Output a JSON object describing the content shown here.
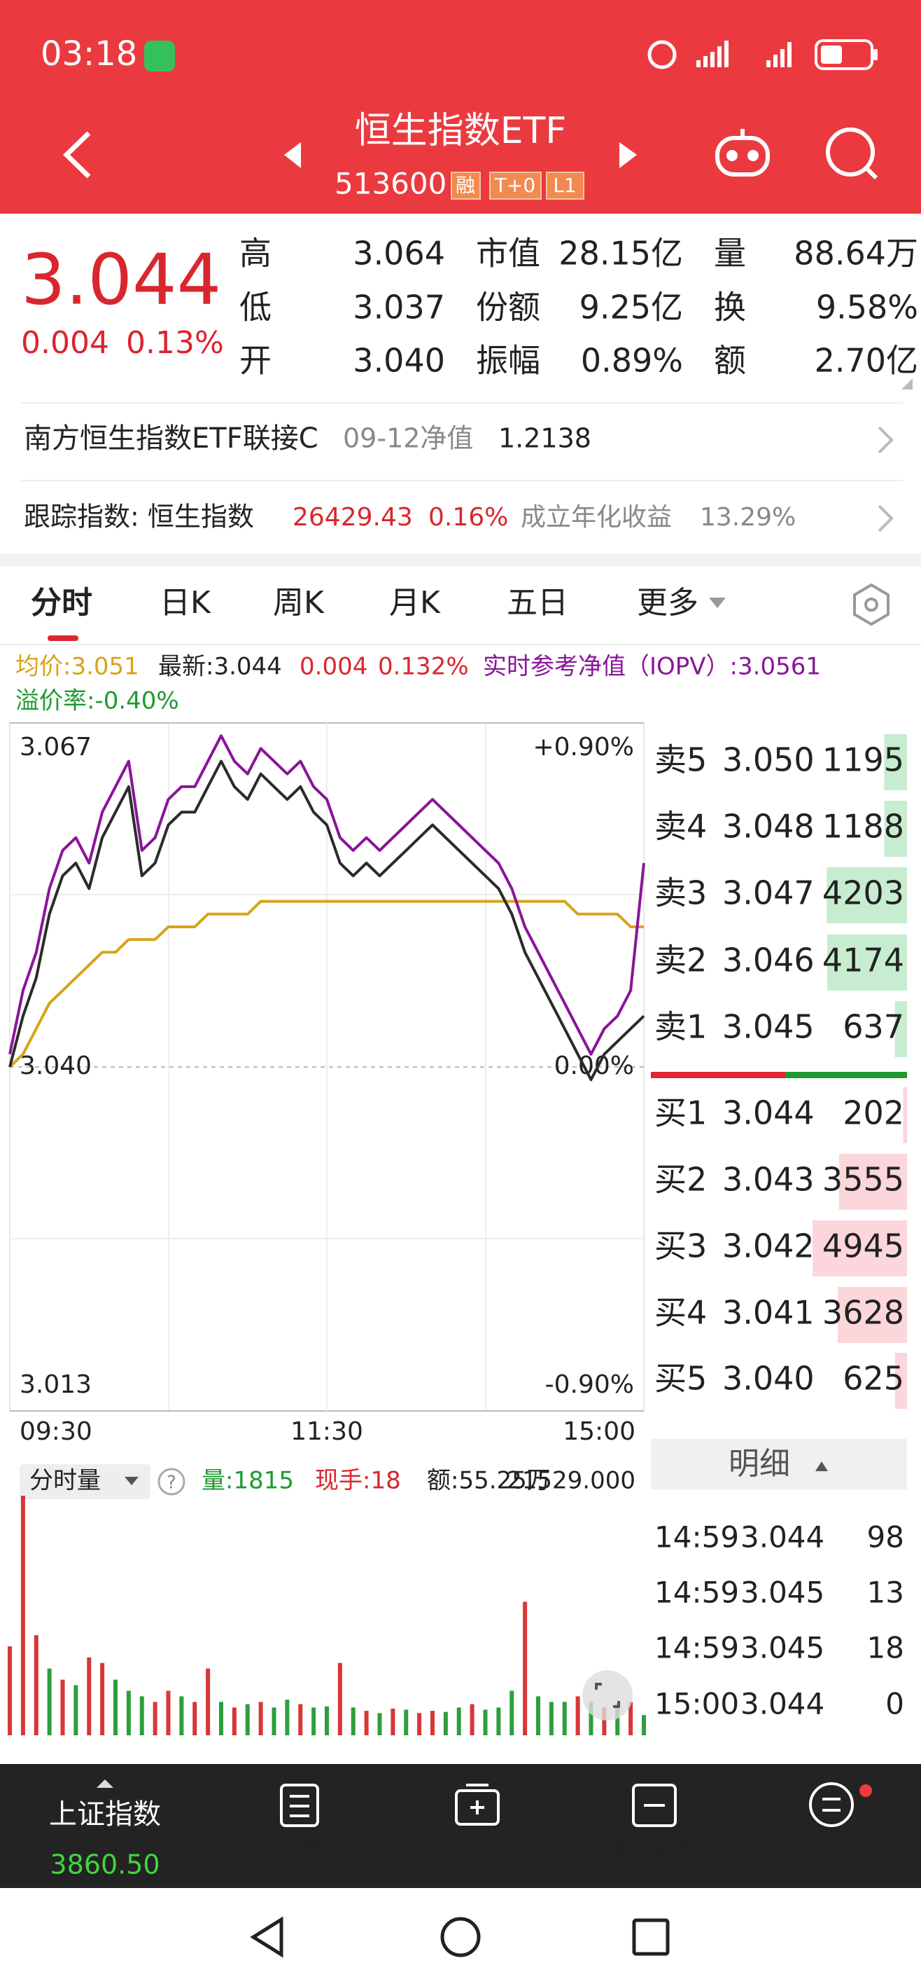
{
  "status_bar": {
    "time": "03:18"
  },
  "header": {
    "title": "恒生指数ETF",
    "code": "513600",
    "tags": [
      "融",
      "T+0",
      "L1"
    ]
  },
  "quote": {
    "price": "3.044",
    "change": "0.004",
    "change_pct": "0.13%",
    "rows": [
      [
        {
          "label": "高",
          "value": "3.064"
        },
        {
          "label": "市值",
          "value": "28.15亿"
        },
        {
          "label": "量",
          "value": "88.64万"
        }
      ],
      [
        {
          "label": "低",
          "value": "3.037"
        },
        {
          "label": "份额",
          "value": "9.25亿"
        },
        {
          "label": "换",
          "value": "9.58%"
        }
      ],
      [
        {
          "label": "开",
          "value": "3.040"
        },
        {
          "label": "振幅",
          "value": "0.89%"
        },
        {
          "label": "额",
          "value": "2.70亿"
        }
      ]
    ]
  },
  "fund_row": {
    "name": "南方恒生指数ETF联接C",
    "nav_label": "09-12净值",
    "nav": "1.2138"
  },
  "tracking_row": {
    "label": "跟踪指数: 恒生指数",
    "index_value": "26429.43",
    "index_change": "0.16%",
    "return_label": "成立年化收益",
    "return_value": "13.29%"
  },
  "tabs": [
    "分时",
    "日K",
    "周K",
    "月K",
    "五日",
    "更多"
  ],
  "indicators": {
    "avg": "均价:3.051",
    "latest": "最新:3.044",
    "change": "0.004",
    "change_pct": "0.132%",
    "iopv": "实时参考净值（IOPV）:3.0561",
    "premium": "溢价率:-0.40%"
  },
  "chart_data": [
    {
      "type": "line",
      "x": [
        0,
        5,
        10,
        15,
        20,
        25,
        30,
        35,
        40,
        45,
        50,
        55,
        60,
        65,
        70,
        75,
        80,
        85,
        90,
        95,
        100,
        105,
        110,
        115,
        120,
        125,
        130,
        135,
        140,
        145,
        150,
        155,
        160,
        165,
        170,
        175,
        180,
        185,
        190,
        195,
        200,
        205,
        210,
        215,
        220,
        225,
        230,
        235,
        240
      ],
      "xlim": [
        0,
        240
      ],
      "xticks": [
        {
          "value": 0,
          "label": "09:30"
        },
        {
          "value": 120,
          "label": "11:30"
        },
        {
          "value": 240,
          "label": "15:00"
        }
      ],
      "ylim": [
        3.013,
        3.067
      ],
      "yticks": [
        {
          "value": 3.067,
          "label": "3.067"
        },
        {
          "value": 3.04,
          "label": "3.040"
        },
        {
          "value": 3.013,
          "label": "3.013"
        }
      ],
      "y2lim": [
        -0.9,
        0.9
      ],
      "y2ticks": [
        {
          "value": 0.9,
          "label": "+0.90%"
        },
        {
          "value": 0,
          "label": "0.00%"
        },
        {
          "value": -0.9,
          "label": "-0.90%"
        }
      ],
      "grid": true,
      "series": [
        {
          "color": "#d8a31a",
          "values": [
            3.04,
            3.041,
            3.043,
            3.045,
            3.046,
            3.047,
            3.048,
            3.049,
            3.049,
            3.05,
            3.05,
            3.05,
            3.051,
            3.051,
            3.051,
            3.052,
            3.052,
            3.052,
            3.052,
            3.053,
            3.053,
            3.053,
            3.053,
            3.053,
            3.053,
            3.053,
            3.053,
            3.053,
            3.053,
            3.053,
            3.053,
            3.053,
            3.053,
            3.053,
            3.053,
            3.053,
            3.053,
            3.053,
            3.053,
            3.053,
            3.053,
            3.053,
            3.053,
            3.052,
            3.052,
            3.052,
            3.052,
            3.051,
            3.051
          ]
        },
        {
          "color": "#8a159a",
          "values": [
            3.041,
            3.046,
            3.049,
            3.054,
            3.057,
            3.058,
            3.056,
            3.06,
            3.062,
            3.064,
            3.057,
            3.058,
            3.061,
            3.062,
            3.062,
            3.064,
            3.066,
            3.064,
            3.063,
            3.065,
            3.064,
            3.063,
            3.064,
            3.062,
            3.061,
            3.058,
            3.057,
            3.058,
            3.057,
            3.058,
            3.059,
            3.06,
            3.061,
            3.06,
            3.059,
            3.058,
            3.057,
            3.056,
            3.054,
            3.051,
            3.049,
            3.047,
            3.045,
            3.043,
            3.041,
            3.043,
            3.044,
            3.046,
            3.056
          ]
        },
        {
          "color": "#2b2b2b",
          "values": [
            3.04,
            3.044,
            3.047,
            3.052,
            3.055,
            3.056,
            3.054,
            3.058,
            3.06,
            3.062,
            3.055,
            3.056,
            3.059,
            3.06,
            3.06,
            3.062,
            3.064,
            3.062,
            3.061,
            3.063,
            3.062,
            3.061,
            3.062,
            3.06,
            3.059,
            3.056,
            3.055,
            3.056,
            3.055,
            3.056,
            3.057,
            3.058,
            3.059,
            3.058,
            3.057,
            3.056,
            3.055,
            3.054,
            3.052,
            3.049,
            3.047,
            3.045,
            3.043,
            3.041,
            3.039,
            3.041,
            3.042,
            3.043,
            3.044
          ]
        }
      ]
    },
    {
      "type": "bar",
      "x": [
        0,
        5,
        10,
        15,
        20,
        25,
        30,
        35,
        40,
        45,
        50,
        55,
        60,
        65,
        70,
        75,
        80,
        85,
        90,
        95,
        100,
        105,
        110,
        115,
        120,
        125,
        130,
        135,
        140,
        145,
        150,
        155,
        160,
        165,
        170,
        175,
        180,
        185,
        190,
        195,
        200,
        205,
        210,
        215,
        220,
        225,
        230,
        235,
        240
      ],
      "xlim": [
        0,
        240
      ],
      "ylim": [
        0,
        21529
      ],
      "yticks": [
        {
          "value": 21529,
          "label": "21529.000"
        }
      ],
      "values": [
        8000,
        21529,
        9000,
        6000,
        5000,
        4500,
        7000,
        6500,
        5000,
        4000,
        3500,
        3000,
        4000,
        3500,
        3000,
        6000,
        3000,
        2500,
        2800,
        3000,
        2500,
        3200,
        2800,
        2500,
        2600,
        6500,
        2500,
        2200,
        2000,
        2400,
        2300,
        2000,
        2200,
        2100,
        2500,
        2800,
        2300,
        2500,
        4000,
        12000,
        3500,
        3000,
        3000,
        3500,
        3000,
        2500,
        2800,
        3000,
        1815
      ],
      "colors": [
        "#d93636",
        "#d93636",
        "#d93636",
        "#2e9e3c",
        "#d93636",
        "#2e9e3c",
        "#d93636",
        "#d93636",
        "#2e9e3c",
        "#2e9e3c",
        "#2e9e3c",
        "#d93636",
        "#d93636",
        "#2e9e3c",
        "#d93636",
        "#d93636",
        "#2e9e3c",
        "#d93636",
        "#2e9e3c",
        "#d93636",
        "#2e9e3c",
        "#2e9e3c",
        "#d93636",
        "#2e9e3c",
        "#2e9e3c",
        "#d93636",
        "#2e9e3c",
        "#d93636",
        "#2e9e3c",
        "#d93636",
        "#2e9e3c",
        "#d93636",
        "#d93636",
        "#2e9e3c",
        "#2e9e3c",
        "#d93636",
        "#2e9e3c",
        "#2e9e3c",
        "#2e9e3c",
        "#d93636",
        "#2e9e3c",
        "#2e9e3c",
        "#2e9e3c",
        "#d93636",
        "#2e9e3c",
        "#d93636",
        "#2e9e3c",
        "#d93636",
        "#2e9e3c"
      ]
    }
  ],
  "volume_header": {
    "selector": "分时量",
    "volume": "量:1815",
    "hand": "现手:18",
    "amount": "额:55.25万"
  },
  "order_book": {
    "asks": [
      {
        "label": "卖5",
        "price": "3.050",
        "volume": 1195
      },
      {
        "label": "卖4",
        "price": "3.048",
        "volume": 1188
      },
      {
        "label": "卖3",
        "price": "3.047",
        "volume": 4203
      },
      {
        "label": "卖2",
        "price": "3.046",
        "volume": 4174
      },
      {
        "label": "卖1",
        "price": "3.045",
        "volume": 637
      }
    ],
    "bids": [
      {
        "label": "买1",
        "price": "3.044",
        "volume": 202
      },
      {
        "label": "买2",
        "price": "3.043",
        "volume": 3555
      },
      {
        "label": "买3",
        "price": "3.042",
        "volume": 4945
      },
      {
        "label": "买4",
        "price": "3.041",
        "volume": 3628
      },
      {
        "label": "买5",
        "price": "3.040",
        "volume": 625
      }
    ]
  },
  "trades": {
    "title": "明细",
    "rows": [
      {
        "time": "14:59",
        "price": "3.044",
        "volume": 98
      },
      {
        "time": "14:59",
        "price": "3.045",
        "volume": 13
      },
      {
        "time": "14:59",
        "price": "3.045",
        "volume": 18
      },
      {
        "time": "15:00",
        "price": "3.044",
        "volume": 0
      }
    ]
  },
  "bottom_nav": {
    "index_name": "上证指数",
    "index_value": "3860.50",
    "items": [
      "下单",
      "诊股",
      "删自选",
      "功能"
    ]
  }
}
